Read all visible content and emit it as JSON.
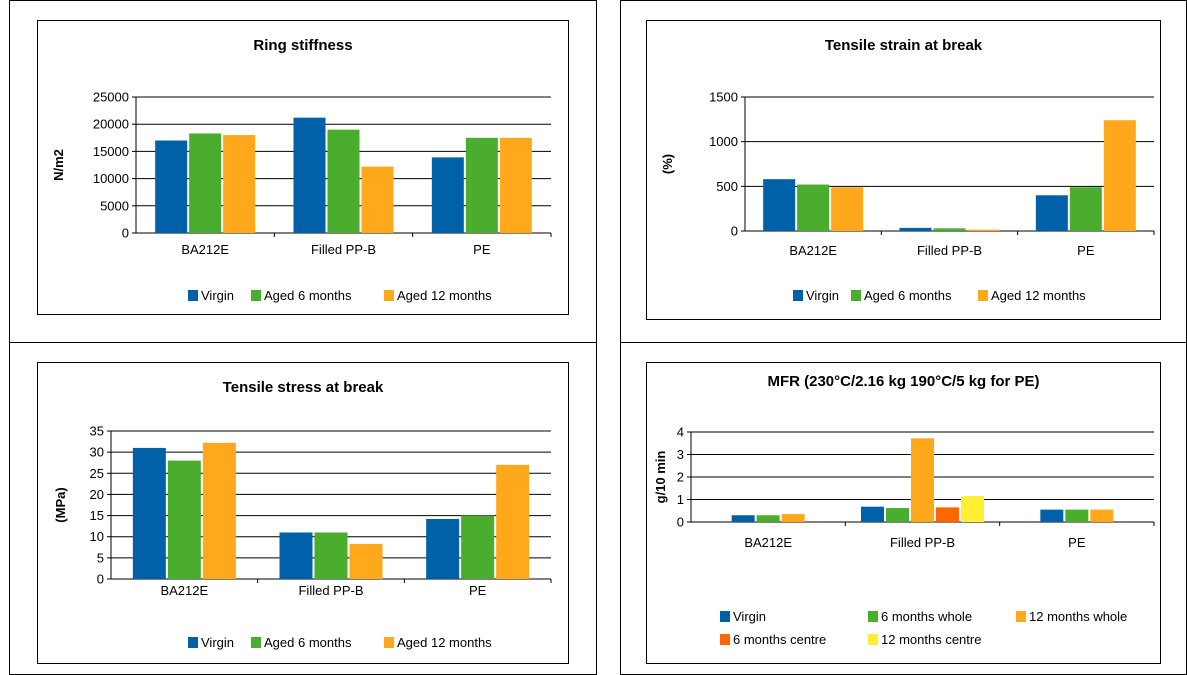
{
  "page": {
    "background": "#ffffff"
  },
  "colors": {
    "Virgin": "#0061a8",
    "Aged 6 months": "#4aad2d",
    "Aged 12 months": "#ffa81b",
    "6 months whole": "#4aad2d",
    "12 months whole": "#ffa81b",
    "6 months centre": "#ff6600",
    "12 months centre": "#ffee33"
  },
  "chart_data": [
    {
      "id": "ring",
      "type": "bar",
      "title": "Ring stiffness",
      "ylabel": "N/m2",
      "ylim": [
        0,
        25000
      ],
      "yticks": [
        0,
        5000,
        10000,
        15000,
        20000,
        25000
      ],
      "grid": true,
      "legend": "bottom",
      "categories": [
        "BA212E",
        "Filled PP-B",
        "PE"
      ],
      "series": [
        {
          "name": "Virgin",
          "values": [
            17000,
            21200,
            13900
          ]
        },
        {
          "name": "Aged 6 months",
          "values": [
            18300,
            19000,
            17500
          ]
        },
        {
          "name": "Aged 12 months",
          "values": [
            18000,
            12200,
            17500
          ]
        }
      ]
    },
    {
      "id": "strain",
      "type": "bar",
      "title": "Tensile strain at break",
      "ylabel": "(%)",
      "ylim": [
        0,
        1500
      ],
      "yticks": [
        0,
        500,
        1000,
        1500
      ],
      "grid": true,
      "legend": "bottom",
      "categories": [
        "BA212E",
        "Filled PP-B",
        "PE"
      ],
      "series": [
        {
          "name": "Virgin",
          "values": [
            580,
            35,
            400
          ]
        },
        {
          "name": "Aged 6 months",
          "values": [
            520,
            30,
            490
          ]
        },
        {
          "name": "Aged 12 months",
          "values": [
            490,
            15,
            1240
          ]
        }
      ]
    },
    {
      "id": "stress",
      "type": "bar",
      "title": "Tensile stress at break",
      "ylabel": "(MPa)",
      "ylim": [
        0,
        35
      ],
      "yticks": [
        0,
        5,
        10,
        15,
        20,
        25,
        30,
        35
      ],
      "grid": true,
      "legend": "bottom",
      "categories": [
        "BA212E",
        "Filled PP-B",
        "PE"
      ],
      "series": [
        {
          "name": "Virgin",
          "values": [
            31,
            11,
            14.2
          ]
        },
        {
          "name": "Aged 6 months",
          "values": [
            28,
            11,
            15
          ]
        },
        {
          "name": "Aged 12 months",
          "values": [
            32.2,
            8.3,
            27
          ]
        }
      ]
    },
    {
      "id": "mfr",
      "type": "bar",
      "title": "MFR (230°C/2.16 kg 190°C/5 kg for PE)",
      "ylabel": "g/10 min",
      "ylim": [
        0,
        4
      ],
      "yticks": [
        0,
        1,
        2,
        3,
        4
      ],
      "grid": true,
      "legend": "bottom",
      "categories": [
        "BA212E",
        "Filled PP-B",
        "PE"
      ],
      "series": [
        {
          "name": "Virgin",
          "values": [
            0.3,
            0.68,
            0.55
          ]
        },
        {
          "name": "6 months whole",
          "values": [
            0.3,
            0.62,
            0.55
          ]
        },
        {
          "name": "12 months whole",
          "values": [
            0.35,
            3.72,
            0.55
          ]
        },
        {
          "name": "6 months centre",
          "values": [
            null,
            0.65,
            null
          ]
        },
        {
          "name": "12 months centre",
          "values": [
            null,
            1.15,
            null
          ]
        }
      ]
    }
  ]
}
